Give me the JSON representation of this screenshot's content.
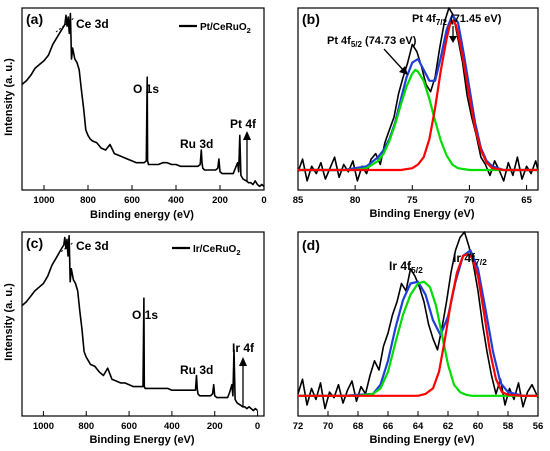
{
  "chart_data": [
    {
      "panel": "(a)",
      "type": "line",
      "xlabel": "Binding energy (eV)",
      "ylabel": "Intensity (a. u.)",
      "xlim": [
        1100,
        0
      ],
      "x_ticks": [
        1000,
        800,
        600,
        400,
        200,
        0
      ],
      "legend": [
        {
          "name": "Pt/CeRuO2",
          "color": "#000000"
        }
      ],
      "annotations": [
        "Ce 3d",
        "O 1s",
        "Ru 3d",
        "Pt 4f"
      ],
      "series": [
        {
          "name": "Pt/CeRuO2",
          "color": "#000000",
          "x": [
            1100,
            1080,
            1060,
            1040,
            1020,
            1000,
            980,
            960,
            940,
            920,
            905,
            900,
            895,
            890,
            885,
            880,
            875,
            870,
            860,
            850,
            840,
            830,
            820,
            810,
            800,
            790,
            780,
            760,
            740,
            720,
            700,
            680,
            660,
            640,
            620,
            600,
            580,
            560,
            545,
            535,
            531,
            529,
            525,
            515,
            500,
            480,
            460,
            440,
            420,
            400,
            380,
            350,
            320,
            300,
            290,
            285,
            282,
            278,
            270,
            250,
            220,
            210,
            205,
            200,
            190,
            180,
            160,
            140,
            130,
            120,
            115,
            110,
            105,
            95,
            80,
            70,
            60,
            50,
            40,
            30,
            20,
            10,
            0
          ],
          "y": [
            0.58,
            0.6,
            0.63,
            0.67,
            0.69,
            0.71,
            0.74,
            0.8,
            0.84,
            0.88,
            0.91,
            0.96,
            0.9,
            0.95,
            0.86,
            0.97,
            0.72,
            0.78,
            0.72,
            0.7,
            0.66,
            0.55,
            0.45,
            0.33,
            0.3,
            0.28,
            0.27,
            0.26,
            0.23,
            0.22,
            0.25,
            0.2,
            0.19,
            0.18,
            0.17,
            0.16,
            0.15,
            0.15,
            0.15,
            0.16,
            0.62,
            0.16,
            0.14,
            0.14,
            0.14,
            0.14,
            0.15,
            0.15,
            0.14,
            0.14,
            0.13,
            0.13,
            0.13,
            0.13,
            0.14,
            0.22,
            0.15,
            0.12,
            0.11,
            0.11,
            0.11,
            0.12,
            0.17,
            0.1,
            0.09,
            0.09,
            0.09,
            0.09,
            0.12,
            0.15,
            0.1,
            0.3,
            0.08,
            0.06,
            0.05,
            0.04,
            0.04,
            0.03,
            0.05,
            0.03,
            0.02,
            0.03,
            0.02
          ]
        }
      ]
    },
    {
      "panel": "(b)",
      "type": "line",
      "xlabel": "Binding Energy (eV)",
      "ylabel": "",
      "xlim": [
        85,
        64
      ],
      "x_ticks": [
        85,
        80,
        75,
        70,
        65
      ],
      "annotations": [
        {
          "main": "Pt 4f",
          "sub": "5/2",
          "tail": " (74.73 eV)"
        },
        {
          "main": "Pt 4f",
          "sub": "7/2",
          "tail": " (71.45 eV)"
        }
      ],
      "series": [
        {
          "name": "",
          "color": "#000000",
          "x": [
            85.0,
            84.6,
            84.2,
            83.8,
            83.4,
            83.0,
            82.6,
            82.2,
            81.8,
            81.4,
            81.0,
            80.6,
            80.2,
            79.8,
            79.4,
            79.0,
            78.6,
            78.2,
            77.8,
            77.4,
            77.0,
            76.6,
            76.2,
            75.8,
            75.4,
            75.0,
            74.6,
            74.2,
            73.8,
            73.4,
            73.0,
            72.6,
            72.2,
            71.8,
            71.4,
            71.0,
            70.6,
            70.2,
            69.8,
            69.4,
            69.0,
            68.6,
            68.2,
            67.8,
            67.4,
            67.0,
            66.6,
            66.2,
            65.8,
            65.4,
            65.0,
            64.6,
            64.2,
            64.0
          ],
          "y": [
            0.1,
            0.17,
            0.05,
            0.13,
            0.09,
            0.15,
            0.06,
            0.12,
            0.18,
            0.07,
            0.14,
            0.1,
            0.16,
            0.05,
            0.13,
            0.09,
            0.17,
            0.2,
            0.14,
            0.26,
            0.33,
            0.4,
            0.53,
            0.62,
            0.7,
            0.8,
            0.76,
            0.68,
            0.58,
            0.54,
            0.62,
            0.78,
            0.92,
            1.0,
            0.96,
            0.83,
            0.7,
            0.52,
            0.4,
            0.3,
            0.18,
            0.14,
            0.08,
            0.16,
            0.11,
            0.05,
            0.15,
            0.08,
            0.18,
            0.06,
            0.13,
            0.09,
            0.16,
            0.11
          ]
        },
        {
          "name": "",
          "color": "#1f3fd8",
          "x": [
            85,
            84,
            83,
            82,
            81,
            80,
            79,
            78,
            77.5,
            77,
            76.5,
            76,
            75.5,
            75,
            74.5,
            74,
            73.5,
            73,
            72.5,
            72,
            71.5,
            71,
            70.5,
            70,
            69.5,
            69,
            68.5,
            68,
            67,
            66,
            65,
            64
          ],
          "y": [
            0.11,
            0.11,
            0.11,
            0.11,
            0.11,
            0.12,
            0.13,
            0.18,
            0.22,
            0.28,
            0.37,
            0.5,
            0.62,
            0.7,
            0.72,
            0.66,
            0.6,
            0.6,
            0.73,
            0.88,
            0.96,
            0.92,
            0.75,
            0.56,
            0.37,
            0.23,
            0.16,
            0.13,
            0.11,
            0.11,
            0.11,
            0.11
          ]
        },
        {
          "name": "",
          "color": "#00dd00",
          "x": [
            85,
            80,
            79,
            78,
            77.5,
            77,
            76.5,
            76,
            75.5,
            75,
            74.73,
            74.5,
            74,
            73.5,
            73,
            72.5,
            72,
            71.5,
            71,
            70,
            69,
            68,
            64
          ],
          "y": [
            0.11,
            0.11,
            0.12,
            0.16,
            0.2,
            0.27,
            0.36,
            0.47,
            0.57,
            0.64,
            0.66,
            0.65,
            0.6,
            0.5,
            0.38,
            0.27,
            0.19,
            0.14,
            0.12,
            0.11,
            0.11,
            0.11,
            0.11
          ]
        },
        {
          "name": "",
          "color": "#ff0000",
          "x": [
            85,
            78,
            76,
            75,
            74.5,
            74,
            73.5,
            73,
            72.5,
            72,
            71.7,
            71.45,
            71.2,
            71,
            70.5,
            70,
            69.5,
            69,
            68.5,
            68,
            67,
            64
          ],
          "y": [
            0.11,
            0.11,
            0.11,
            0.12,
            0.14,
            0.18,
            0.28,
            0.45,
            0.66,
            0.83,
            0.91,
            0.93,
            0.91,
            0.86,
            0.7,
            0.51,
            0.34,
            0.22,
            0.15,
            0.12,
            0.11,
            0.11
          ]
        }
      ]
    },
    {
      "panel": "(c)",
      "type": "line",
      "xlabel": "Binding Energy (eV)",
      "ylabel": "Intensity (a. u.)",
      "xlim": [
        1100,
        -30
      ],
      "x_ticks": [
        1000,
        800,
        600,
        400,
        200,
        0
      ],
      "legend": [
        {
          "name": "Ir/CeRuO2",
          "color": "#000000"
        }
      ],
      "annotations": [
        "Ce 3d",
        "O 1s",
        "Ru 3d",
        "Ir 4f"
      ],
      "series": [
        {
          "name": "Ir/CeRuO2",
          "color": "#000000",
          "x": [
            1100,
            1080,
            1060,
            1040,
            1020,
            1000,
            980,
            960,
            940,
            920,
            905,
            900,
            895,
            890,
            885,
            880,
            875,
            870,
            860,
            850,
            840,
            830,
            820,
            810,
            800,
            790,
            780,
            760,
            740,
            720,
            700,
            680,
            660,
            640,
            620,
            600,
            580,
            560,
            545,
            535,
            531,
            529,
            525,
            515,
            500,
            480,
            460,
            440,
            420,
            400,
            380,
            350,
            320,
            300,
            290,
            285,
            282,
            278,
            270,
            250,
            220,
            210,
            205,
            200,
            190,
            180,
            160,
            140,
            130,
            120,
            115,
            110,
            105,
            95,
            80,
            70,
            60,
            50,
            40,
            30,
            20,
            10,
            0
          ],
          "y": [
            0.6,
            0.62,
            0.65,
            0.68,
            0.7,
            0.72,
            0.76,
            0.82,
            0.86,
            0.9,
            0.93,
            0.97,
            0.91,
            0.96,
            0.87,
            0.98,
            0.73,
            0.8,
            0.74,
            0.72,
            0.68,
            0.57,
            0.47,
            0.35,
            0.32,
            0.3,
            0.28,
            0.27,
            0.24,
            0.22,
            0.26,
            0.2,
            0.19,
            0.18,
            0.18,
            0.17,
            0.16,
            0.16,
            0.16,
            0.16,
            0.64,
            0.16,
            0.15,
            0.15,
            0.15,
            0.15,
            0.15,
            0.15,
            0.15,
            0.14,
            0.14,
            0.14,
            0.14,
            0.14,
            0.14,
            0.22,
            0.15,
            0.12,
            0.11,
            0.11,
            0.11,
            0.12,
            0.17,
            0.11,
            0.1,
            0.1,
            0.1,
            0.1,
            0.13,
            0.17,
            0.11,
            0.36,
            0.09,
            0.07,
            0.06,
            0.05,
            0.05,
            0.04,
            0.05,
            0.04,
            0.03,
            0.04,
            0.03
          ]
        }
      ]
    },
    {
      "panel": "(d)",
      "type": "line",
      "xlabel": "Binding Energy (eV)",
      "ylabel": "",
      "xlim": [
        72,
        56
      ],
      "x_ticks": [
        72,
        70,
        68,
        66,
        64,
        62,
        60,
        58,
        56
      ],
      "annotations": [
        {
          "main": "Ir 4f",
          "sub": "5/2",
          "tail": ""
        },
        {
          "main": "Ir 4f",
          "sub": "7/2",
          "tail": ""
        }
      ],
      "series": [
        {
          "name": "",
          "color": "#000000",
          "x": [
            72.0,
            71.7,
            71.4,
            71.1,
            70.8,
            70.5,
            70.2,
            69.9,
            69.6,
            69.3,
            69.0,
            68.7,
            68.4,
            68.1,
            67.8,
            67.5,
            67.2,
            66.9,
            66.6,
            66.3,
            66.0,
            65.7,
            65.4,
            65.1,
            64.8,
            64.5,
            64.2,
            63.9,
            63.6,
            63.3,
            63.0,
            62.7,
            62.4,
            62.1,
            61.8,
            61.5,
            61.2,
            60.9,
            60.6,
            60.3,
            60.0,
            59.7,
            59.4,
            59.1,
            58.8,
            58.5,
            58.2,
            57.9,
            57.6,
            57.3,
            57.0,
            56.7,
            56.4,
            56.0
          ],
          "y": [
            0.12,
            0.2,
            0.06,
            0.15,
            0.09,
            0.18,
            0.04,
            0.13,
            0.1,
            0.17,
            0.07,
            0.14,
            0.19,
            0.08,
            0.16,
            0.12,
            0.22,
            0.3,
            0.25,
            0.38,
            0.45,
            0.55,
            0.62,
            0.72,
            0.68,
            0.8,
            0.76,
            0.7,
            0.62,
            0.5,
            0.42,
            0.36,
            0.48,
            0.62,
            0.78,
            0.9,
            0.97,
            1.0,
            0.92,
            0.82,
            0.68,
            0.5,
            0.35,
            0.22,
            0.12,
            0.2,
            0.06,
            0.15,
            0.09,
            0.18,
            0.05,
            0.13,
            0.17,
            0.1
          ]
        },
        {
          "name": "",
          "color": "#1f3fd8",
          "x": [
            72,
            69,
            67,
            66.5,
            66,
            65.5,
            65,
            64.5,
            64,
            63.5,
            63,
            62.5,
            62,
            61.5,
            61,
            60.5,
            60,
            59.5,
            59,
            58.5,
            58,
            57,
            56
          ],
          "y": [
            0.11,
            0.11,
            0.12,
            0.17,
            0.3,
            0.48,
            0.63,
            0.72,
            0.73,
            0.66,
            0.52,
            0.44,
            0.54,
            0.73,
            0.87,
            0.9,
            0.8,
            0.58,
            0.35,
            0.18,
            0.13,
            0.11,
            0.11
          ]
        },
        {
          "name": "",
          "color": "#00dd00",
          "x": [
            72,
            68,
            67,
            66.5,
            66,
            65.5,
            65,
            64.5,
            64,
            63.6,
            63.2,
            62.8,
            62.4,
            62,
            61.6,
            61.2,
            60.8,
            60.4,
            60,
            59,
            56
          ],
          "y": [
            0.11,
            0.11,
            0.12,
            0.15,
            0.24,
            0.4,
            0.55,
            0.66,
            0.72,
            0.73,
            0.7,
            0.6,
            0.44,
            0.28,
            0.17,
            0.13,
            0.115,
            0.11,
            0.11,
            0.11,
            0.11
          ]
        },
        {
          "name": "",
          "color": "#ff0000",
          "x": [
            72,
            64,
            63.5,
            63,
            62.6,
            62.2,
            61.8,
            61.4,
            61,
            60.7,
            60.4,
            60,
            59.6,
            59.2,
            58.8,
            58.4,
            58,
            57,
            56
          ],
          "y": [
            0.11,
            0.11,
            0.12,
            0.15,
            0.24,
            0.42,
            0.62,
            0.78,
            0.87,
            0.88,
            0.86,
            0.76,
            0.56,
            0.35,
            0.2,
            0.13,
            0.115,
            0.11,
            0.11
          ]
        }
      ]
    }
  ]
}
